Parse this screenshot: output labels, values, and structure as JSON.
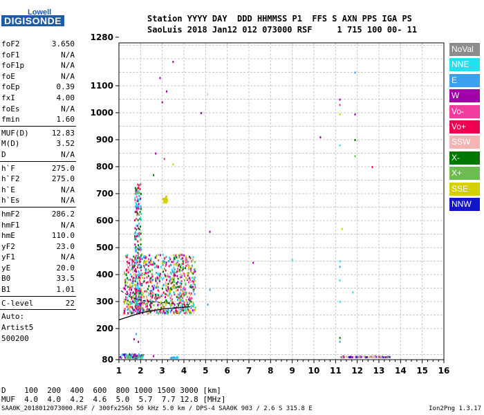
{
  "logo": {
    "line1": "Lowell",
    "line2": "DIGISONDE"
  },
  "header": {
    "line1": "Station YYYY DAY  DDD HHMMSS P1  FFS S AXN PPS IGA PS",
    "line2": "SaoLuis 2018 Jan12 012 073000 RSF     1 715 100 00- 11"
  },
  "params": [
    {
      "name": "foF2",
      "value": "3.650"
    },
    {
      "name": "foF1",
      "value": "N/A"
    },
    {
      "name": "foF1p",
      "value": "N/A"
    },
    {
      "name": "foE",
      "value": "N/A"
    },
    {
      "name": "foEp",
      "value": "0.39"
    },
    {
      "name": "fxI",
      "value": "4.00"
    },
    {
      "name": "foEs",
      "value": "N/A"
    },
    {
      "name": "fmin",
      "value": "1.60"
    },
    {
      "sep": true
    },
    {
      "name": "MUF(D)",
      "value": "12.83"
    },
    {
      "name": "M(D)",
      "value": "3.52"
    },
    {
      "name": "D",
      "value": "N/A"
    },
    {
      "sep": true
    },
    {
      "name": "h`F",
      "value": "275.0"
    },
    {
      "name": "h`F2",
      "value": "275.0"
    },
    {
      "name": "h`E",
      "value": "N/A"
    },
    {
      "name": "h`Es",
      "value": "N/A"
    },
    {
      "sep": true
    },
    {
      "name": "hmF2",
      "value": "286.2"
    },
    {
      "name": "hmF1",
      "value": "N/A"
    },
    {
      "name": "hmE",
      "value": "110.0"
    },
    {
      "name": "yF2",
      "value": "23.0"
    },
    {
      "name": "yF1",
      "value": "N/A"
    },
    {
      "name": "yE",
      "value": "20.0"
    },
    {
      "name": "B0",
      "value": "33.5"
    },
    {
      "name": "B1",
      "value": "1.01"
    },
    {
      "sep": true
    },
    {
      "name": "C-level",
      "value": "22"
    },
    {
      "sep": true
    }
  ],
  "auto": [
    "Auto:",
    "Artist5",
    "500200"
  ],
  "legend": [
    {
      "label": "NoVal",
      "color": "#8c8c8c"
    },
    {
      "label": "NNE",
      "color": "#22e0f0"
    },
    {
      "label": "E",
      "color": "#3aa0f0"
    },
    {
      "label": "W",
      "color": "#a000a8"
    },
    {
      "label": "Vo-",
      "color": "#f03c9c"
    },
    {
      "label": "Vo+",
      "color": "#f00050"
    },
    {
      "label": "SSW",
      "color": "#f5b4b4"
    },
    {
      "label": "X-",
      "color": "#007800"
    },
    {
      "label": "X+",
      "color": "#6cbc50"
    },
    {
      "label": "SSE",
      "color": "#d4d000"
    },
    {
      "label": "NNW",
      "color": "#1414c8"
    }
  ],
  "footer": {
    "d_line": "D    100  200  400  600  800 1000 1500 3000 [km]",
    "muf_line": "MUF  4.0  4.0  4.2  4.6  5.0  5.7  7.7 12.8 [MHz]",
    "file_line": "SAA0K_2018012073000.RSF / 300fx256h 50 kHz 5.0 km / DPS-4 SAA0K 903 / 2.6 S 315.8 E",
    "version": "Ion2Png 1.3.17"
  },
  "chart_data": {
    "type": "scatter",
    "xlim": [
      1,
      16
    ],
    "ylim": [
      80,
      1280
    ],
    "x_ticks": [
      1,
      2,
      3,
      4,
      5,
      6,
      7,
      8,
      9,
      10,
      11,
      12,
      13,
      14,
      15,
      16
    ],
    "y_ticks": [
      80,
      200,
      300,
      400,
      500,
      600,
      700,
      800,
      900,
      1000,
      1100,
      1280
    ],
    "grid": true,
    "trace_curve": [
      [
        1,
        232
      ],
      [
        1.5,
        245
      ],
      [
        2,
        258
      ],
      [
        2.5,
        266
      ],
      [
        3,
        272
      ],
      [
        3.5,
        276
      ],
      [
        4,
        279
      ],
      [
        4.3,
        281
      ]
    ],
    "dashed_curve": [
      [
        1.1,
        340
      ],
      [
        1.5,
        318
      ],
      [
        2,
        305
      ],
      [
        2.5,
        300
      ],
      [
        3,
        296
      ],
      [
        3.5,
        293
      ],
      [
        4,
        290
      ],
      [
        4.3,
        288
      ]
    ],
    "echo_clusters": [
      {
        "x": [
          1.2,
          4.5
        ],
        "y": [
          260,
          480
        ],
        "count": 900,
        "colors": [
          "#f03c9c",
          "#f00050",
          "#a000a8",
          "#f5b4b4",
          "#d4d000",
          "#22e0f0",
          "#3aa0f0",
          "#6cbc50",
          "#007800"
        ]
      },
      {
        "x": [
          1.7,
          2.0
        ],
        "y": [
          260,
          740
        ],
        "count": 260,
        "colors": [
          "#f03c9c",
          "#f00050",
          "#a000a8",
          "#6cbc50",
          "#007800",
          "#22e0f0",
          "#3aa0f0"
        ]
      },
      {
        "x": [
          1.0,
          2.1
        ],
        "y": [
          90,
          105
        ],
        "count": 70,
        "colors": [
          "#1414c8",
          "#3aa0f0",
          "#22e0f0",
          "#a000a8",
          "#6cbc50"
        ]
      },
      {
        "x": [
          11.2,
          13.5
        ],
        "y": [
          93,
          96
        ],
        "count": 80,
        "colors": [
          "#f5b4b4",
          "#a000a8",
          "#1414c8",
          "#8c8c8c"
        ]
      },
      {
        "x": [
          3.0,
          3.2
        ],
        "y": [
          670,
          695
        ],
        "count": 25,
        "colors": [
          "#d4d000"
        ]
      },
      {
        "x": [
          3.3,
          3.8
        ],
        "y": [
          90,
          96
        ],
        "count": 12,
        "colors": [
          "#3aa0f0",
          "#22e0f0"
        ]
      }
    ],
    "echo_points": [
      {
        "x": 3.5,
        "y": 1190,
        "color": "#a000a8"
      },
      {
        "x": 2.9,
        "y": 1130,
        "color": "#a000a8"
      },
      {
        "x": 3.0,
        "y": 1040,
        "color": "#a000a8"
      },
      {
        "x": 3.2,
        "y": 1080,
        "color": "#a000a8"
      },
      {
        "x": 4.8,
        "y": 1000,
        "color": "#a000a8"
      },
      {
        "x": 5.1,
        "y": 1070,
        "color": "#f5b4b4"
      },
      {
        "x": 2.7,
        "y": 850,
        "color": "#a000a8"
      },
      {
        "x": 3.1,
        "y": 830,
        "color": "#f03c9c"
      },
      {
        "x": 2.6,
        "y": 770,
        "color": "#007800"
      },
      {
        "x": 3.5,
        "y": 810,
        "color": "#d4d000"
      },
      {
        "x": 5.2,
        "y": 560,
        "color": "#a000a8"
      },
      {
        "x": 5.2,
        "y": 345,
        "color": "#3aa0f0"
      },
      {
        "x": 5.1,
        "y": 290,
        "color": "#3aa0f0"
      },
      {
        "x": 7.2,
        "y": 445,
        "color": "#a000a8"
      },
      {
        "x": 9.0,
        "y": 455,
        "color": "#22e0f0"
      },
      {
        "x": 10.3,
        "y": 910,
        "color": "#a000a8"
      },
      {
        "x": 11.2,
        "y": 1050,
        "color": "#a000a8"
      },
      {
        "x": 11.2,
        "y": 1030,
        "color": "#f03c9c"
      },
      {
        "x": 11.2,
        "y": 995,
        "color": "#d4d000"
      },
      {
        "x": 11.2,
        "y": 880,
        "color": "#22e0f0"
      },
      {
        "x": 11.3,
        "y": 570,
        "color": "#d4d000"
      },
      {
        "x": 11.2,
        "y": 450,
        "color": "#22e0f0"
      },
      {
        "x": 11.2,
        "y": 430,
        "color": "#3aa0f0"
      },
      {
        "x": 11.2,
        "y": 380,
        "color": "#22e0f0"
      },
      {
        "x": 11.2,
        "y": 300,
        "color": "#22e0f0"
      },
      {
        "x": 11.2,
        "y": 150,
        "color": "#3aa0f0"
      },
      {
        "x": 11.2,
        "y": 165,
        "color": "#007800"
      },
      {
        "x": 11.8,
        "y": 335,
        "color": "#22e0f0"
      },
      {
        "x": 11.9,
        "y": 995,
        "color": "#a000a8"
      },
      {
        "x": 11.9,
        "y": 900,
        "color": "#007800"
      },
      {
        "x": 11.9,
        "y": 840,
        "color": "#6cbc50"
      },
      {
        "x": 12.7,
        "y": 800,
        "color": "#f00050"
      },
      {
        "x": 11.9,
        "y": 1150,
        "color": "#3aa0f0"
      },
      {
        "x": 1.7,
        "y": 160,
        "color": "#a000a8"
      },
      {
        "x": 1.8,
        "y": 180,
        "color": "#3aa0f0"
      },
      {
        "x": 1.9,
        "y": 150,
        "color": "#a000a8"
      },
      {
        "x": 2.6,
        "y": 95,
        "color": "#a000a8"
      },
      {
        "x": 1.3,
        "y": 360,
        "color": "#a000a8"
      },
      {
        "x": 1.4,
        "y": 330,
        "color": "#a000a8"
      }
    ]
  }
}
